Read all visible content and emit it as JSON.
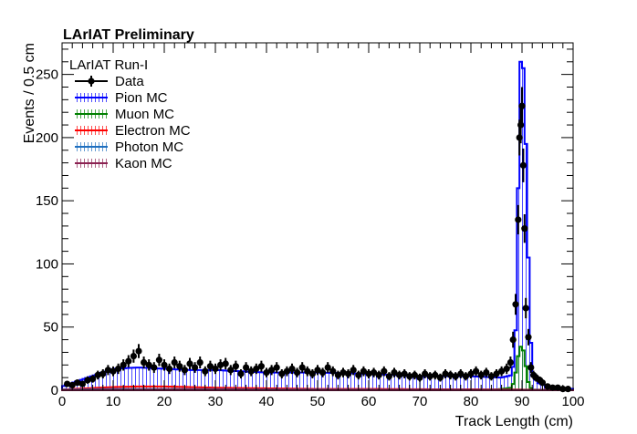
{
  "chart_data": {
    "type": "histogram",
    "title": "LArIAT Preliminary",
    "xlabel": "Track Length (cm)",
    "ylabel": "Events / 0.5 cm",
    "xlim": [
      0,
      100
    ],
    "ylim": [
      0,
      275
    ],
    "x_ticks": [
      0,
      10,
      20,
      30,
      40,
      50,
      60,
      70,
      80,
      90,
      100
    ],
    "y_ticks": [
      0,
      50,
      100,
      150,
      200,
      250
    ],
    "grid": false,
    "bin_width": 0.5,
    "legend": {
      "header": "LArIAT Run-I",
      "placement": "top-left",
      "entries": [
        {
          "label": "Data",
          "color": "#000000",
          "style": "marker"
        },
        {
          "label": "Pion MC",
          "color": "#0000ff",
          "style": "hatched"
        },
        {
          "label": "Muon MC",
          "color": "#008000",
          "style": "hatched"
        },
        {
          "label": "Electron MC",
          "color": "#ff0000",
          "style": "hatched"
        },
        {
          "label": "Photon MC",
          "color": "#1e6fbf",
          "style": "hatched"
        },
        {
          "label": "Kaon MC",
          "color": "#8b2252",
          "style": "hatched"
        }
      ]
    },
    "mc_series": [
      {
        "name": "Pion MC",
        "color": "#0000ff",
        "points": [
          [
            0,
            3
          ],
          [
            5,
            10
          ],
          [
            10,
            17
          ],
          [
            15,
            18
          ],
          [
            20,
            17
          ],
          [
            25,
            16
          ],
          [
            30,
            16
          ],
          [
            40,
            14
          ],
          [
            50,
            14
          ],
          [
            60,
            13
          ],
          [
            70,
            11
          ],
          [
            80,
            11
          ],
          [
            86,
            10
          ],
          [
            88,
            12
          ],
          [
            88.5,
            25
          ],
          [
            89,
            70
          ],
          [
            89.5,
            250
          ],
          [
            90,
            270
          ],
          [
            90.5,
            240
          ],
          [
            91,
            150
          ],
          [
            91.5,
            60
          ],
          [
            92,
            15
          ],
          [
            93,
            6
          ],
          [
            95,
            3
          ],
          [
            100,
            1
          ]
        ]
      },
      {
        "name": "Muon MC",
        "color": "#008000",
        "points": [
          [
            0,
            0
          ],
          [
            85,
            0.5
          ],
          [
            88,
            2
          ],
          [
            88.5,
            8
          ],
          [
            89,
            20
          ],
          [
            89.5,
            34
          ],
          [
            90,
            35
          ],
          [
            90.5,
            28
          ],
          [
            91,
            10
          ],
          [
            91.5,
            3
          ],
          [
            92,
            0.5
          ],
          [
            100,
            0
          ]
        ]
      },
      {
        "name": "Electron MC",
        "color": "#ff0000",
        "points": [
          [
            0,
            0.5
          ],
          [
            5,
            1.5
          ],
          [
            10,
            2.5
          ],
          [
            15,
            3
          ],
          [
            20,
            3
          ],
          [
            25,
            2.5
          ],
          [
            30,
            2
          ],
          [
            40,
            1.5
          ],
          [
            50,
            1
          ],
          [
            60,
            1
          ],
          [
            70,
            0.8
          ],
          [
            80,
            0.6
          ],
          [
            90,
            0.5
          ],
          [
            100,
            0
          ]
        ]
      },
      {
        "name": "Photon MC",
        "color": "#1e6fbf",
        "points": [
          [
            0,
            0.5
          ],
          [
            10,
            1
          ],
          [
            20,
            1
          ],
          [
            40,
            0.7
          ],
          [
            60,
            0.5
          ],
          [
            80,
            0.4
          ],
          [
            100,
            0
          ]
        ]
      },
      {
        "name": "Kaon MC",
        "color": "#8b2252",
        "points": [
          [
            0,
            0.3
          ],
          [
            20,
            0.6
          ],
          [
            50,
            0.5
          ],
          [
            90,
            0.4
          ],
          [
            100,
            0
          ]
        ]
      }
    ],
    "data_points": [
      {
        "x": 1.0,
        "y": 5
      },
      {
        "x": 2.0,
        "y": 4
      },
      {
        "x": 3.0,
        "y": 6
      },
      {
        "x": 4.0,
        "y": 5
      },
      {
        "x": 5.0,
        "y": 8
      },
      {
        "x": 6.0,
        "y": 9
      },
      {
        "x": 7.0,
        "y": 12
      },
      {
        "x": 8.0,
        "y": 13
      },
      {
        "x": 9.0,
        "y": 16
      },
      {
        "x": 10.0,
        "y": 15
      },
      {
        "x": 11.0,
        "y": 17
      },
      {
        "x": 12.0,
        "y": 20
      },
      {
        "x": 13.0,
        "y": 23
      },
      {
        "x": 14.0,
        "y": 27
      },
      {
        "x": 15.0,
        "y": 31
      },
      {
        "x": 16.0,
        "y": 22
      },
      {
        "x": 17.0,
        "y": 20
      },
      {
        "x": 18.0,
        "y": 18
      },
      {
        "x": 19.0,
        "y": 24
      },
      {
        "x": 20.0,
        "y": 20
      },
      {
        "x": 21.0,
        "y": 17
      },
      {
        "x": 22.0,
        "y": 22
      },
      {
        "x": 23.0,
        "y": 19
      },
      {
        "x": 24.0,
        "y": 16
      },
      {
        "x": 25.0,
        "y": 21
      },
      {
        "x": 26.0,
        "y": 18
      },
      {
        "x": 27.0,
        "y": 22
      },
      {
        "x": 28.0,
        "y": 15
      },
      {
        "x": 29.0,
        "y": 19
      },
      {
        "x": 30.0,
        "y": 17
      },
      {
        "x": 31.0,
        "y": 20
      },
      {
        "x": 32.0,
        "y": 21
      },
      {
        "x": 33.0,
        "y": 16
      },
      {
        "x": 34.0,
        "y": 19
      },
      {
        "x": 35.0,
        "y": 13
      },
      {
        "x": 36.0,
        "y": 18
      },
      {
        "x": 37.0,
        "y": 15
      },
      {
        "x": 38.0,
        "y": 17
      },
      {
        "x": 39.0,
        "y": 19
      },
      {
        "x": 40.0,
        "y": 14
      },
      {
        "x": 41.0,
        "y": 16
      },
      {
        "x": 42.0,
        "y": 18
      },
      {
        "x": 43.0,
        "y": 13
      },
      {
        "x": 44.0,
        "y": 15
      },
      {
        "x": 45.0,
        "y": 17
      },
      {
        "x": 46.0,
        "y": 14
      },
      {
        "x": 47.0,
        "y": 18
      },
      {
        "x": 48.0,
        "y": 15
      },
      {
        "x": 49.0,
        "y": 13
      },
      {
        "x": 50.0,
        "y": 16
      },
      {
        "x": 51.0,
        "y": 14
      },
      {
        "x": 52.0,
        "y": 18
      },
      {
        "x": 53.0,
        "y": 15
      },
      {
        "x": 54.0,
        "y": 12
      },
      {
        "x": 55.0,
        "y": 14
      },
      {
        "x": 56.0,
        "y": 13
      },
      {
        "x": 57.0,
        "y": 16
      },
      {
        "x": 58.0,
        "y": 12
      },
      {
        "x": 59.0,
        "y": 15
      },
      {
        "x": 60.0,
        "y": 13
      },
      {
        "x": 61.0,
        "y": 14
      },
      {
        "x": 62.0,
        "y": 12
      },
      {
        "x": 63.0,
        "y": 15
      },
      {
        "x": 64.0,
        "y": 11
      },
      {
        "x": 65.0,
        "y": 14
      },
      {
        "x": 66.0,
        "y": 12
      },
      {
        "x": 67.0,
        "y": 13
      },
      {
        "x": 68.0,
        "y": 11
      },
      {
        "x": 69.0,
        "y": 12
      },
      {
        "x": 70.0,
        "y": 10
      },
      {
        "x": 71.0,
        "y": 13
      },
      {
        "x": 72.0,
        "y": 11
      },
      {
        "x": 73.0,
        "y": 12
      },
      {
        "x": 74.0,
        "y": 10
      },
      {
        "x": 75.0,
        "y": 13
      },
      {
        "x": 76.0,
        "y": 12
      },
      {
        "x": 77.0,
        "y": 11
      },
      {
        "x": 78.0,
        "y": 13
      },
      {
        "x": 79.0,
        "y": 11
      },
      {
        "x": 80.0,
        "y": 13
      },
      {
        "x": 81.0,
        "y": 15
      },
      {
        "x": 82.0,
        "y": 12
      },
      {
        "x": 83.0,
        "y": 14
      },
      {
        "x": 84.0,
        "y": 11
      },
      {
        "x": 85.0,
        "y": 13
      },
      {
        "x": 86.0,
        "y": 15
      },
      {
        "x": 87.0,
        "y": 17
      },
      {
        "x": 87.75,
        "y": 22
      },
      {
        "x": 88.25,
        "y": 40
      },
      {
        "x": 88.75,
        "y": 68
      },
      {
        "x": 89.25,
        "y": 135
      },
      {
        "x": 89.5,
        "y": 200
      },
      {
        "x": 89.75,
        "y": 210
      },
      {
        "x": 90.0,
        "y": 225
      },
      {
        "x": 90.25,
        "y": 178
      },
      {
        "x": 90.5,
        "y": 128
      },
      {
        "x": 90.75,
        "y": 65
      },
      {
        "x": 91.25,
        "y": 42
      },
      {
        "x": 91.75,
        "y": 18
      },
      {
        "x": 92.25,
        "y": 12
      },
      {
        "x": 92.75,
        "y": 10
      },
      {
        "x": 93.5,
        "y": 8
      },
      {
        "x": 94.0,
        "y": 6
      },
      {
        "x": 95.0,
        "y": 3
      },
      {
        "x": 96.0,
        "y": 2
      },
      {
        "x": 97.0,
        "y": 2
      },
      {
        "x": 98.0,
        "y": 1
      },
      {
        "x": 99.0,
        "y": 1
      }
    ]
  }
}
